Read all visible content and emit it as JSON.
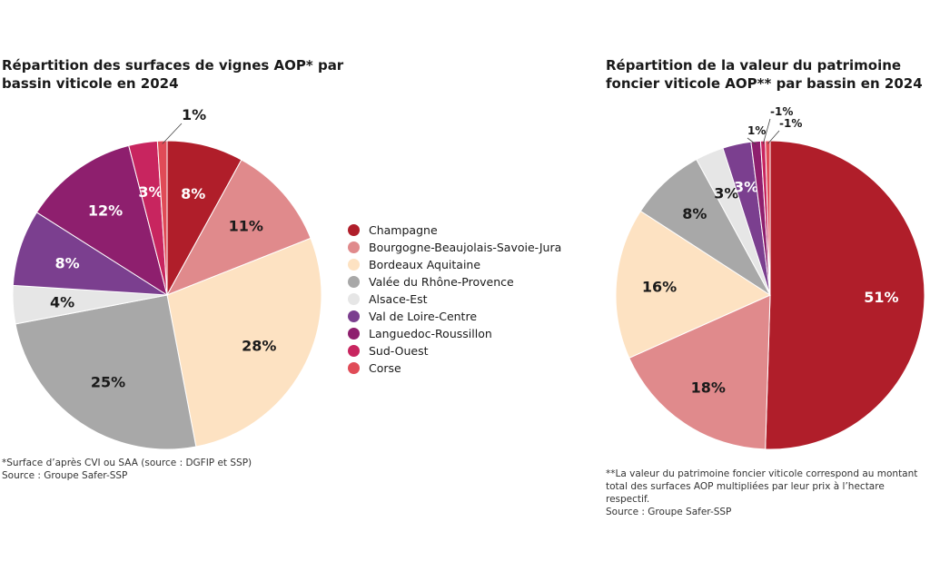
{
  "left": {
    "title": "Répartition des surfaces de vignes AOP* par bassin viticole en 2024",
    "footnote": "*Surface d’après CVI ou SAA (source : DGFIP et SSP)",
    "source": "Source : Groupe Safer-SSP"
  },
  "right": {
    "title": "Répartition de la valeur du patrimoine foncier viticole AOP** par bassin en 2024",
    "footnote": "**La valeur du patrimoine foncier viticole correspond au montant total des surfaces AOP multipliées par leur prix à l’hectare respectif.",
    "source": "Source : Groupe Safer-SSP"
  },
  "legend": [
    {
      "label": "Champagne",
      "color": "#b01e2a"
    },
    {
      "label": "Bourgogne-Beaujolais-Savoie-Jura",
      "color": "#e08a8c"
    },
    {
      "label": "Bordeaux Aquitaine",
      "color": "#fde2c2"
    },
    {
      "label": "Valée du Rhône-Provence",
      "color": "#a8a8a8"
    },
    {
      "label": "Alsace-Est",
      "color": "#e6e6e6"
    },
    {
      "label": "Val de Loire-Centre",
      "color": "#7b3f8f"
    },
    {
      "label": "Languedoc-Roussillon",
      "color": "#8e1f6e"
    },
    {
      "label": "Sud-Ouest",
      "color": "#c8255f"
    },
    {
      "label": "Corse",
      "color": "#e04b57"
    }
  ],
  "chart_data": [
    {
      "type": "pie",
      "title": "Répartition des surfaces de vignes AOP* par bassin viticole en 2024",
      "categories": [
        "Champagne",
        "Bourgogne-Beaujolais-Savoie-Jura",
        "Bordeaux Aquitaine",
        "Valée du Rhône-Provence",
        "Alsace-Est",
        "Val de Loire-Centre",
        "Languedoc-Roussillon",
        "Sud-Ouest",
        "Corse"
      ],
      "values": [
        8,
        11,
        28,
        25,
        4,
        8,
        12,
        3,
        1
      ],
      "labels": [
        "8%",
        "11%",
        "28%",
        "25%",
        "4%",
        "8%",
        "12%",
        "3%",
        "1%"
      ],
      "start_angle_deg": 0,
      "direction": "clockwise"
    },
    {
      "type": "pie",
      "title": "Répartition de la valeur du patrimoine foncier viticole AOP** par bassin en 2024",
      "categories": [
        "Champagne",
        "Bourgogne-Beaujolais-Savoie-Jura",
        "Bordeaux Aquitaine",
        "Valée du Rhône-Provence",
        "Alsace-Est",
        "Val de Loire-Centre",
        "Languedoc-Roussillon",
        "Sud-Ouest",
        "Corse"
      ],
      "values": [
        51,
        18,
        16,
        8,
        3,
        3,
        1,
        0.5,
        0.5
      ],
      "labels": [
        "51%",
        "18%",
        "16%",
        "8%",
        "3%",
        "3%",
        "1%",
        "-1%",
        "-1%"
      ],
      "start_angle_deg": 0,
      "direction": "clockwise"
    }
  ]
}
